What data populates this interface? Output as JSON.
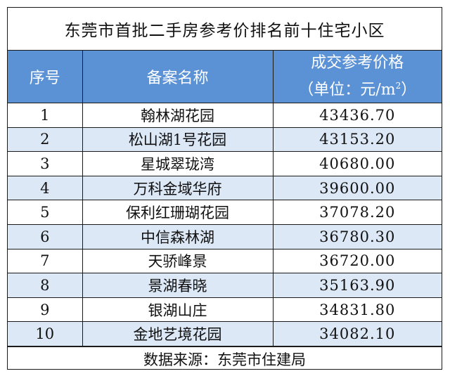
{
  "title": "东莞市首批二手房参考价排名前十住宅小区",
  "colors": {
    "header_bg": "#5b92d6",
    "alt_row_bg": "#dce8f5"
  },
  "header": {
    "col_index": "序号",
    "col_name": "备案名称",
    "col_price_line1": "成交参考价格",
    "col_price_line2_prefix": "（单位：元/m",
    "col_price_sup": "2",
    "col_price_line2_suffix": "）"
  },
  "rows": [
    {
      "index": "1",
      "name": "翰林湖花园",
      "price": "43436.70"
    },
    {
      "index": "2",
      "name": "松山湖1号花园",
      "price": "43153.20"
    },
    {
      "index": "3",
      "name": "星城翠珑湾",
      "price": "40680.00"
    },
    {
      "index": "4",
      "name": "万科金域华府",
      "price": "39600.00"
    },
    {
      "index": "5",
      "name": "保利红珊瑚花园",
      "price": "37078.20"
    },
    {
      "index": "6",
      "name": "中信森林湖",
      "price": "36780.30"
    },
    {
      "index": "7",
      "name": "天骄峰景",
      "price": "36720.00"
    },
    {
      "index": "8",
      "name": "景湖春晓",
      "price": "35163.90"
    },
    {
      "index": "9",
      "name": "银湖山庄",
      "price": "34831.80"
    },
    {
      "index": "10",
      "name": "金地艺境花园",
      "price": "34082.10"
    }
  ],
  "footer": "数据来源：东莞市住建局"
}
